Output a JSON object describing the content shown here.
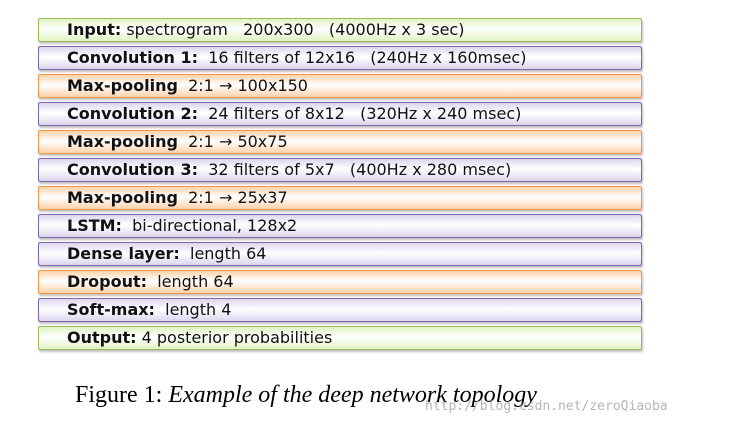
{
  "layers": [
    {
      "name": "Input:",
      "detail": " spectrogram   200x300   (4000Hz x 3 sec)",
      "fill": "#dff2c2",
      "border": "#9bbb59"
    },
    {
      "name": "Convolution 1:",
      "detail": "  16 filters of 12x16   (240Hz x 160msec)",
      "fill": "#dcd5ef",
      "border": "#7f6aa8"
    },
    {
      "name": "Max-pooling",
      "detail": "  2:1 → 100x150",
      "fill": "#fcd2aa",
      "border": "#f79646"
    },
    {
      "name": "Convolution 2:",
      "detail": "  24 filters of 8x12   (320Hz x 240 msec)",
      "fill": "#dcd5ef",
      "border": "#7f6aa8"
    },
    {
      "name": "Max-pooling",
      "detail": "  2:1 → 50x75",
      "fill": "#fcd2aa",
      "border": "#f79646"
    },
    {
      "name": "Convolution 3:",
      "detail": "  32 filters of 5x7   (400Hz x 280 msec)",
      "fill": "#dcd5ef",
      "border": "#7f6aa8"
    },
    {
      "name": "Max-pooling",
      "detail": "  2:1 → 25x37",
      "fill": "#fcd2aa",
      "border": "#f79646"
    },
    {
      "name": "LSTM:",
      "detail": "  bi-directional, 128x2",
      "fill": "#dcd5ef",
      "border": "#7f6aa8"
    },
    {
      "name": "Dense layer:",
      "detail": "  length 64",
      "fill": "#dcd5ef",
      "border": "#7f6aa8"
    },
    {
      "name": "Dropout:",
      "detail": "  length 64",
      "fill": "#fcd2aa",
      "border": "#f79646"
    },
    {
      "name": "Soft-max:",
      "detail": "  length 4",
      "fill": "#dcd5ef",
      "border": "#7f6aa8"
    },
    {
      "name": "Output:",
      "detail": " 4 posterior probabilities",
      "fill": "#dff2c2",
      "border": "#9bbb59"
    }
  ],
  "caption": {
    "label": "Figure 1:",
    "text": "Example of the deep network topology"
  },
  "watermark": "http://blog.csdn.net/zeroQiaoba"
}
